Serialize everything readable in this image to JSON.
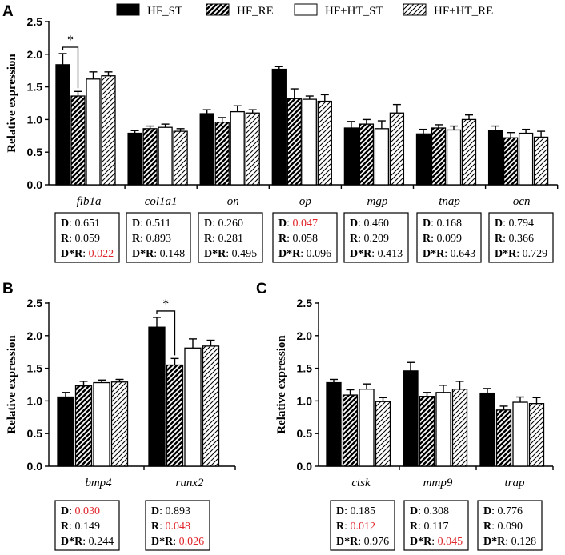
{
  "legend": [
    {
      "name": "HF_ST",
      "fill": "solid"
    },
    {
      "name": "HF_RE",
      "fill": "hatch-dark"
    },
    {
      "name": "HF+HT_ST",
      "fill": "white"
    },
    {
      "name": "HF+HT_RE",
      "fill": "hatch-light"
    }
  ],
  "colors": {
    "bar": "#000000",
    "significant": "#e0242a",
    "text": "#000000"
  },
  "chart_data": [
    {
      "panel": "A",
      "type": "bar",
      "ylabel": "Relative expression",
      "ylim": [
        0,
        2.5
      ],
      "yticks": [
        "0.0",
        "0.5",
        "1.0",
        "1.5",
        "2.0",
        "2.5"
      ],
      "categories": [
        "fib1a",
        "col1a1",
        "on",
        "op",
        "mgp",
        "tnap",
        "ocn"
      ],
      "series": [
        {
          "name": "HF_ST",
          "values": [
            1.84,
            0.79,
            1.09,
            1.77,
            0.87,
            0.78,
            0.83
          ],
          "errors": [
            0.17,
            0.04,
            0.06,
            0.04,
            0.1,
            0.07,
            0.07
          ]
        },
        {
          "name": "HF_RE",
          "values": [
            1.36,
            0.86,
            0.96,
            1.32,
            0.93,
            0.87,
            0.72
          ],
          "errors": [
            0.07,
            0.04,
            0.07,
            0.15,
            0.07,
            0.05,
            0.08
          ]
        },
        {
          "name": "HF+HT_ST",
          "values": [
            1.62,
            0.88,
            1.12,
            1.31,
            0.86,
            0.84,
            0.79
          ],
          "errors": [
            0.11,
            0.05,
            0.09,
            0.05,
            0.12,
            0.06,
            0.06
          ]
        },
        {
          "name": "HF+HT_RE",
          "values": [
            1.67,
            0.82,
            1.1,
            1.28,
            1.1,
            1.0,
            0.73
          ],
          "errors": [
            0.06,
            0.04,
            0.05,
            0.1,
            0.13,
            0.07,
            0.09
          ]
        }
      ],
      "significance": [
        {
          "category": 0,
          "from_series": 0,
          "to_series": 1,
          "label": "*"
        }
      ],
      "stats": [
        {
          "D": "0.651",
          "R": "0.059",
          "DR": "0.022",
          "sig": [
            false,
            false,
            true
          ]
        },
        {
          "D": "0.511",
          "R": "0.893",
          "DR": "0.148",
          "sig": [
            false,
            false,
            false
          ]
        },
        {
          "D": "0.260",
          "R": "0.281",
          "DR": "0.495",
          "sig": [
            false,
            false,
            false
          ]
        },
        {
          "D": "0.047",
          "R": "0.058",
          "DR": "0.096",
          "sig": [
            true,
            false,
            false
          ]
        },
        {
          "D": "0.460",
          "R": "0.209",
          "DR": "0.413",
          "sig": [
            false,
            false,
            false
          ]
        },
        {
          "D": "0.168",
          "R": "0.099",
          "DR": "0.643",
          "sig": [
            false,
            false,
            false
          ]
        },
        {
          "D": "0.794",
          "R": "0.366",
          "DR": "0.729",
          "sig": [
            false,
            false,
            false
          ]
        }
      ]
    },
    {
      "panel": "B",
      "type": "bar",
      "ylabel": "Relative expression",
      "ylim": [
        0,
        2.5
      ],
      "yticks": [
        "0.0",
        "0.5",
        "1.0",
        "1.5",
        "2.0",
        "2.5"
      ],
      "categories": [
        "bmp4",
        "runx2"
      ],
      "series": [
        {
          "name": "HF_ST",
          "values": [
            1.06,
            2.13
          ],
          "errors": [
            0.07,
            0.15
          ]
        },
        {
          "name": "HF_RE",
          "values": [
            1.23,
            1.55
          ],
          "errors": [
            0.07,
            0.1
          ]
        },
        {
          "name": "HF+HT_ST",
          "values": [
            1.28,
            1.81
          ],
          "errors": [
            0.04,
            0.14
          ]
        },
        {
          "name": "HF+HT_RE",
          "values": [
            1.29,
            1.84
          ],
          "errors": [
            0.04,
            0.09
          ]
        }
      ],
      "significance": [
        {
          "category": 1,
          "from_series": 0,
          "to_series": 1,
          "label": "*"
        }
      ],
      "stats": [
        {
          "D": "0.030",
          "R": "0.149",
          "DR": "0.244",
          "sig": [
            true,
            false,
            false
          ]
        },
        {
          "D": "0.893",
          "R": "0.048",
          "DR": "0.026",
          "sig": [
            false,
            true,
            true
          ]
        }
      ]
    },
    {
      "panel": "C",
      "type": "bar",
      "ylabel": "Relative expression",
      "ylim": [
        0,
        2.5
      ],
      "yticks": [
        "0.0",
        "0.5",
        "1.0",
        "1.5",
        "2.0",
        "2.5"
      ],
      "categories": [
        "ctsk",
        "mmp9",
        "trap"
      ],
      "series": [
        {
          "name": "HF_ST",
          "values": [
            1.28,
            1.46,
            1.12
          ],
          "errors": [
            0.05,
            0.13,
            0.07
          ]
        },
        {
          "name": "HF_RE",
          "values": [
            1.09,
            1.07,
            0.86
          ],
          "errors": [
            0.08,
            0.06,
            0.06
          ]
        },
        {
          "name": "HF+HT_ST",
          "values": [
            1.18,
            1.13,
            0.98
          ],
          "errors": [
            0.08,
            0.11,
            0.08
          ]
        },
        {
          "name": "HF+HT_RE",
          "values": [
            0.99,
            1.18,
            0.96
          ],
          "errors": [
            0.06,
            0.12,
            0.09
          ]
        }
      ],
      "significance": [],
      "stats": [
        {
          "D": "0.185",
          "R": "0.012",
          "DR": "0.976",
          "sig": [
            false,
            true,
            false
          ]
        },
        {
          "D": "0.308",
          "R": "0.117",
          "DR": "0.045",
          "sig": [
            false,
            false,
            true
          ]
        },
        {
          "D": "0.776",
          "R": "0.090",
          "DR": "0.128",
          "sig": [
            false,
            false,
            false
          ]
        }
      ]
    }
  ]
}
